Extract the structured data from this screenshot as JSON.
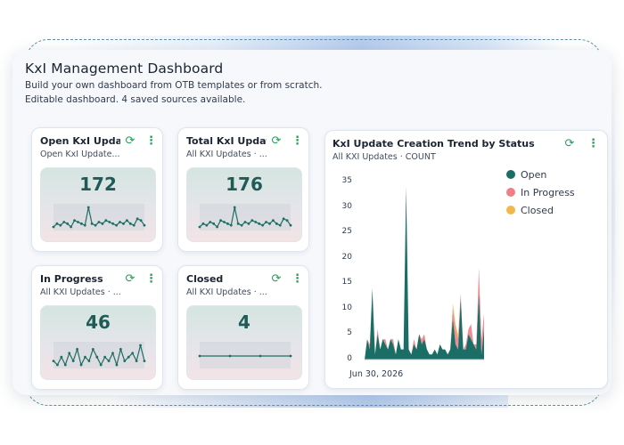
{
  "dashboard": {
    "title": "KxI Management Dashboard",
    "subtitle_line1": "Build your own dashboard from OTB templates or from scratch.",
    "subtitle_line2": "Editable dashboard. 4 saved sources available."
  },
  "cards": [
    {
      "title": "Open KxI Upda...",
      "subtitle": "Open KxI Update...",
      "value": "172",
      "sparkline": [
        2,
        4,
        3,
        5,
        4,
        2,
        6,
        5,
        4,
        3,
        14,
        4,
        3,
        5,
        4,
        6,
        5,
        4,
        3,
        5,
        4,
        6,
        4,
        3,
        7,
        6,
        3
      ]
    },
    {
      "title": "Total KxI Updat...",
      "subtitle": "All KXI Updates · ...",
      "value": "176",
      "sparkline": [
        2,
        4,
        3,
        5,
        4,
        2,
        6,
        5,
        4,
        3,
        14,
        4,
        3,
        5,
        4,
        6,
        5,
        4,
        3,
        5,
        4,
        6,
        4,
        3,
        7,
        6,
        3
      ]
    },
    {
      "title": "In Progress",
      "subtitle": "All KXI Updates · ...",
      "value": "46",
      "sparkline": [
        3,
        2,
        4,
        2,
        5,
        3,
        6,
        2,
        4,
        3,
        6,
        4,
        2,
        4,
        3,
        5,
        2,
        6,
        3,
        4,
        5,
        3,
        7,
        3
      ]
    },
    {
      "title": "Closed",
      "subtitle": "All KXI Updates · ...",
      "value": "4",
      "sparkline": [
        1,
        1,
        1,
        1
      ]
    }
  ],
  "trend_card": {
    "title": "KxI Update Creation Trend by Status",
    "subtitle": "All KXI Updates · COUNT",
    "x_label": "Jun 30, 2026"
  },
  "icons": {
    "refresh": "refresh-icon",
    "menu": "kebab-menu-icon"
  },
  "colors": {
    "open": "#1b6e66",
    "in_progress": "#f07f86",
    "closed": "#f2b84a",
    "accent": "#23a05a"
  },
  "chart_data": {
    "type": "area",
    "title": "KxI Update Creation Trend by Status",
    "xlabel": "",
    "ylabel": "",
    "ylim": [
      0,
      35
    ],
    "yticks": [
      0,
      5,
      10,
      15,
      20,
      25,
      30,
      35
    ],
    "legend_position": "right",
    "x_tick_labels": [
      "Jun 30, 2026"
    ],
    "series": [
      {
        "name": "Open",
        "values": [
          0,
          4,
          2,
          14,
          1,
          5,
          2,
          4,
          3,
          2,
          4,
          3,
          1,
          4,
          2,
          2,
          34,
          2,
          1,
          3,
          2,
          5,
          3,
          4,
          2,
          1,
          1,
          2,
          1,
          3,
          2,
          2,
          1,
          2,
          8,
          3,
          2,
          12,
          2,
          2,
          5,
          4,
          3,
          2,
          13,
          1,
          6
        ]
      },
      {
        "name": "In Progress",
        "values": [
          0,
          0,
          1,
          0,
          0,
          1,
          0,
          0,
          1,
          0,
          0,
          1,
          0,
          0,
          0,
          0,
          0,
          0,
          0,
          1,
          0,
          0,
          1,
          1,
          0,
          0,
          0,
          0,
          0,
          0,
          0,
          0,
          0,
          0,
          2,
          3,
          2,
          1,
          0,
          1,
          1,
          3,
          0,
          1,
          5,
          3,
          3
        ]
      },
      {
        "name": "Closed",
        "values": [
          0,
          0,
          0,
          0,
          0,
          0,
          0,
          0,
          0,
          0,
          0,
          0,
          0,
          0,
          0,
          0,
          0,
          0,
          0,
          0,
          0,
          0,
          0,
          0,
          0,
          0,
          0,
          0,
          0,
          0,
          0,
          0,
          0,
          0,
          1,
          1,
          1,
          0,
          0,
          0,
          0,
          0,
          0,
          0,
          0,
          0,
          0
        ]
      }
    ]
  }
}
